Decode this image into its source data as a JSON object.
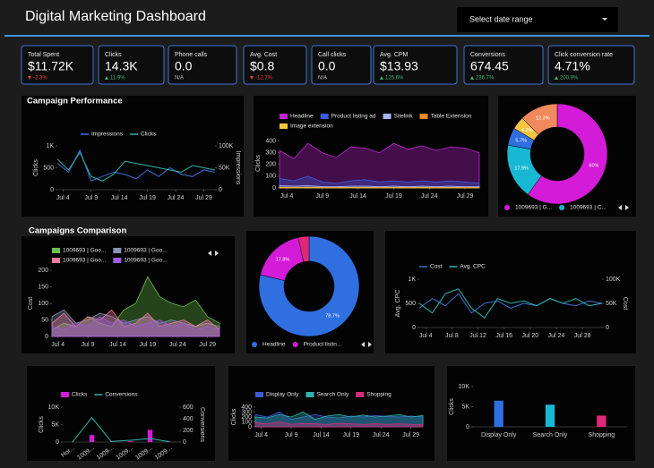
{
  "header": {
    "title": "Digital Marketing Dashboard",
    "date_select": "Select date range"
  },
  "kpis": [
    {
      "label": "Total Spent",
      "value": "$11.72K",
      "change": "-2.3%",
      "trend": "down"
    },
    {
      "label": "Clicks",
      "value": "14.3K",
      "change": "11.9%",
      "trend": "up"
    },
    {
      "label": "Phone calls",
      "value": "0.0",
      "change": "N/A",
      "trend": null
    },
    {
      "label": "Avg. Cost",
      "value": "$0.8",
      "change": "-12.7%",
      "trend": "down"
    },
    {
      "label": "Call clicks",
      "value": "0.0",
      "change": "N/A",
      "trend": null
    },
    {
      "label": "Avg. CPM",
      "value": "$13.93",
      "change": "125.6%",
      "trend": "up"
    },
    {
      "label": "Conversions",
      "value": "674.45",
      "change": "236.7%",
      "trend": "up"
    },
    {
      "label": "Click conversion rate",
      "value": "4.71%",
      "change": "200.9%",
      "trend": "up"
    }
  ],
  "chart_data": [
    {
      "type": "line",
      "title": "Campaign Performance",
      "ytitle": "Clicks",
      "y2title": "Impressions",
      "x": [
        3,
        5,
        7,
        9,
        11,
        13,
        15,
        17,
        19,
        21,
        23,
        25,
        27,
        29,
        31
      ],
      "xlim": [
        3,
        31
      ],
      "xticks": [
        {
          "value": 4,
          "label": "Jul 4"
        },
        {
          "value": 9,
          "label": "Jul 9"
        },
        {
          "value": 14,
          "label": "Jul 14"
        },
        {
          "value": 19,
          "label": "Jul 19"
        },
        {
          "value": 24,
          "label": "Jul 24"
        },
        {
          "value": 29,
          "label": "Jul 29"
        }
      ],
      "ylim": [
        0,
        1000
      ],
      "yticks": [
        0,
        500,
        {
          "value": 1000,
          "label": "1K"
        }
      ],
      "y2lim": [
        0,
        100000
      ],
      "y2ticks": [
        0,
        {
          "value": 50000,
          "label": "50K"
        },
        {
          "value": 100000,
          "label": "100K"
        }
      ],
      "series": [
        {
          "name": "Impressions",
          "color": "#3b6fd4",
          "axis": "y2",
          "values": [
            60000,
            40000,
            90000,
            20000,
            30000,
            40000,
            35000,
            25000,
            45000,
            30000,
            50000,
            35000,
            30000,
            45000,
            40000
          ]
        },
        {
          "name": "Clicks",
          "color": "#2bb5b0",
          "values": [
            700,
            450,
            850,
            300,
            200,
            350,
            650,
            600,
            550,
            500,
            450,
            400,
            550,
            500,
            450
          ]
        }
      ]
    },
    {
      "type": "area",
      "ytitle": "Clicks",
      "x": [
        3,
        5,
        7,
        9,
        11,
        13,
        15,
        17,
        19,
        21,
        23,
        25,
        27,
        29,
        31
      ],
      "xlim": [
        3,
        31
      ],
      "xticks": [
        {
          "value": 4,
          "label": "Jul 4"
        },
        {
          "value": 9,
          "label": "Jul 9"
        },
        {
          "value": 14,
          "label": "Jul 14"
        },
        {
          "value": 19,
          "label": "Jul 19"
        },
        {
          "value": 24,
          "label": "Jul 24"
        },
        {
          "value": 29,
          "label": "Jul 29"
        }
      ],
      "ylim": [
        0,
        420
      ],
      "yticks": [
        0,
        100,
        200,
        300,
        400
      ],
      "series": [
        {
          "name": "Headline",
          "color": "#c026d3",
          "values": [
            320,
            250,
            380,
            300,
            260,
            350,
            340,
            300,
            380,
            330,
            360,
            320,
            350,
            340,
            300
          ]
        },
        {
          "name": "Product listing ad",
          "color": "#3b5bdb",
          "values": [
            80,
            60,
            100,
            50,
            40,
            60,
            70,
            50,
            60,
            50,
            60,
            50,
            60,
            50,
            40
          ]
        },
        {
          "name": "Sitelink",
          "color": "#a5b4fc",
          "values": [
            20,
            15,
            20,
            10,
            10,
            15,
            15,
            10,
            15,
            10,
            15,
            10,
            15,
            10,
            10
          ]
        },
        {
          "name": "Table Extension",
          "color": "#f08a24",
          "values": [
            6,
            5,
            6,
            4,
            4,
            5,
            5,
            4,
            5,
            4,
            5,
            4,
            5,
            4,
            4
          ]
        },
        {
          "name": "Image extension",
          "color": "#f5c542",
          "values": [
            3,
            3,
            4,
            2,
            2,
            3,
            3,
            2,
            3,
            2,
            3,
            2,
            3,
            2,
            2
          ]
        }
      ]
    },
    {
      "type": "pie",
      "categories": [
        "1009693 | G...",
        "1009693 | C...",
        null,
        null,
        null
      ],
      "values": [
        60,
        17.9,
        5.7,
        4.2,
        12.3
      ],
      "value_labels": [
        "60%",
        "17.9%",
        "5.7%",
        "4.2%",
        "12.3%"
      ],
      "colors": [
        "#d41bd8",
        "#18b8d4",
        "#2f6fe0",
        "#f5c542",
        "#f08a5d"
      ]
    },
    {
      "type": "area",
      "title": "Campaigns Comparison",
      "ytitle": "Cost",
      "x": [
        3,
        5,
        7,
        9,
        11,
        13,
        15,
        17,
        19,
        21,
        23,
        25,
        27,
        29,
        31
      ],
      "xlim": [
        3,
        31
      ],
      "xticks": [
        {
          "value": 4,
          "label": "Jul 4"
        },
        {
          "value": 9,
          "label": "Jul 9"
        },
        {
          "value": 14,
          "label": "Jul 14"
        },
        {
          "value": 19,
          "label": "Jul 19"
        },
        {
          "value": 24,
          "label": "Jul 24"
        },
        {
          "value": 29,
          "label": "Jul 29"
        }
      ],
      "ylim": [
        0,
        200
      ],
      "yticks": [
        0,
        50,
        100,
        150,
        200
      ],
      "series": [
        {
          "name": "1009693 | Goo...",
          "color": "#6abf4b",
          "values": [
            20,
            40,
            30,
            60,
            40,
            30,
            80,
            100,
            180,
            120,
            100,
            90,
            110,
            60,
            40
          ]
        },
        {
          "name": "1009693 | Goo...",
          "color": "#8a93b8",
          "values": [
            60,
            80,
            40,
            50,
            70,
            60,
            40,
            50,
            60,
            40,
            50,
            40,
            30,
            40,
            30
          ]
        },
        {
          "name": "1009693 | Goo...",
          "color": "#f07aa0",
          "values": [
            40,
            70,
            30,
            60,
            50,
            80,
            30,
            40,
            70,
            30,
            40,
            50,
            30,
            50,
            20
          ]
        },
        {
          "name": "1009693 | Goo...",
          "color": "#a15ce0",
          "values": [
            30,
            20,
            40,
            30,
            60,
            40,
            50,
            30,
            40,
            50,
            30,
            40,
            20,
            30,
            20
          ]
        }
      ]
    },
    {
      "type": "pie",
      "categories": [
        "Headline",
        "Product listin...",
        null
      ],
      "values": [
        78.7,
        17.8,
        3.5
      ],
      "value_labels": [
        "78.7%",
        "17.8%",
        null
      ],
      "colors": [
        "#2f6fe0",
        "#d41bd8",
        "#e0287a"
      ]
    },
    {
      "type": "line",
      "ytitle": "Avg. CPC",
      "y2title": "Cost",
      "x": [
        3,
        5,
        7,
        9,
        11,
        13,
        15,
        17,
        19,
        21,
        23,
        25,
        27,
        29,
        31
      ],
      "xlim": [
        3,
        31
      ],
      "xticks": [
        {
          "value": 4,
          "label": "Jul 4"
        },
        {
          "value": 8,
          "label": "Jul 8"
        },
        {
          "value": 12,
          "label": "Jul 12"
        },
        {
          "value": 16,
          "label": "Jul 16"
        },
        {
          "value": 20,
          "label": "Jul 20"
        },
        {
          "value": 24,
          "label": "Jul 24"
        },
        {
          "value": 28,
          "label": "Jul 28"
        }
      ],
      "ylim": [
        0,
        1000
      ],
      "yticks": [
        0,
        500,
        {
          "value": 1000,
          "label": "1K"
        }
      ],
      "y2lim": [
        0,
        100000
      ],
      "y2ticks": [
        0,
        {
          "value": 50000,
          "label": "50K"
        },
        {
          "value": 100000,
          "label": "100K"
        }
      ],
      "series": [
        {
          "name": "Cost",
          "color": "#3b6fd4",
          "axis": "y2",
          "values": [
            40000,
            60000,
            45000,
            70000,
            30000,
            50000,
            55000,
            40000,
            50000,
            45000,
            60000,
            50000,
            45000,
            55000,
            50000
          ]
        },
        {
          "name": "Avg. CPC",
          "color": "#2bb5b0",
          "values": [
            500,
            300,
            700,
            800,
            400,
            200,
            600,
            500,
            550,
            450,
            600,
            500,
            600,
            450,
            500
          ]
        }
      ]
    },
    {
      "type": "bar",
      "ytitle": "Clicks",
      "y2title": "Conversions",
      "categories": [
        "Hor...",
        "1009...",
        "1009...",
        "1009...",
        "1009...",
        "1009..."
      ],
      "ylim": [
        0,
        10000
      ],
      "yticks": [
        0,
        {
          "value": 5000,
          "label": "5K"
        },
        {
          "value": 10000,
          "label": "10K"
        }
      ],
      "y2lim": [
        0,
        600
      ],
      "y2ticks": [
        0,
        200,
        400,
        600
      ],
      "series": [
        {
          "name": "Clicks",
          "color": "#d41bd8",
          "values": [
            0,
            2000,
            100,
            200,
            3500,
            100
          ]
        },
        {
          "name": "Conversions",
          "color": "#2bb5b0",
          "type": "line",
          "axis": "y2",
          "values": [
            0,
            420,
            10,
            30,
            60,
            5
          ]
        }
      ]
    },
    {
      "type": "area",
      "ytitle": "Clicks",
      "x": [
        3,
        5,
        7,
        9,
        11,
        13,
        15,
        17,
        19,
        21,
        23,
        25,
        27,
        29,
        31
      ],
      "xlim": [
        3,
        31
      ],
      "xticks": [
        {
          "value": 4,
          "label": "Jul 4"
        },
        {
          "value": 9,
          "label": "Jul 9"
        },
        {
          "value": 14,
          "label": "Jul 14"
        },
        {
          "value": 19,
          "label": "Jul 19"
        },
        {
          "value": 24,
          "label": "Jul 24"
        },
        {
          "value": 29,
          "label": "Jul 29"
        }
      ],
      "ylim": [
        0,
        400
      ],
      "yticks": [
        0,
        100,
        200,
        300,
        400
      ],
      "series": [
        {
          "name": "Display Only",
          "color": "#3b5bdb",
          "values": [
            250,
            200,
            300,
            150,
            200,
            250,
            200,
            180,
            220,
            200,
            230,
            210,
            200,
            220,
            200
          ]
        },
        {
          "name": "Search Only",
          "color": "#2bb5b0",
          "values": [
            200,
            180,
            250,
            200,
            300,
            150,
            220,
            250,
            200,
            240,
            200,
            220,
            250,
            200,
            230
          ]
        },
        {
          "name": "Shopping",
          "color": "#e0287a",
          "values": [
            80,
            60,
            100,
            50,
            70,
            60,
            50,
            70,
            60,
            50,
            60,
            50,
            60,
            50,
            40
          ]
        }
      ]
    },
    {
      "type": "bar",
      "ytitle": "Clicks",
      "categories": [
        "Display Only",
        "Search Only",
        "Shopping"
      ],
      "values": [
        6500,
        5500,
        2800
      ],
      "colors": [
        "#2f6fe0",
        "#18b8d4",
        "#e0287a"
      ],
      "ylim": [
        0,
        10000
      ],
      "yticks": [
        0,
        {
          "value": 5000,
          "label": "5K"
        },
        {
          "value": 10000,
          "label": "10K"
        }
      ]
    }
  ]
}
